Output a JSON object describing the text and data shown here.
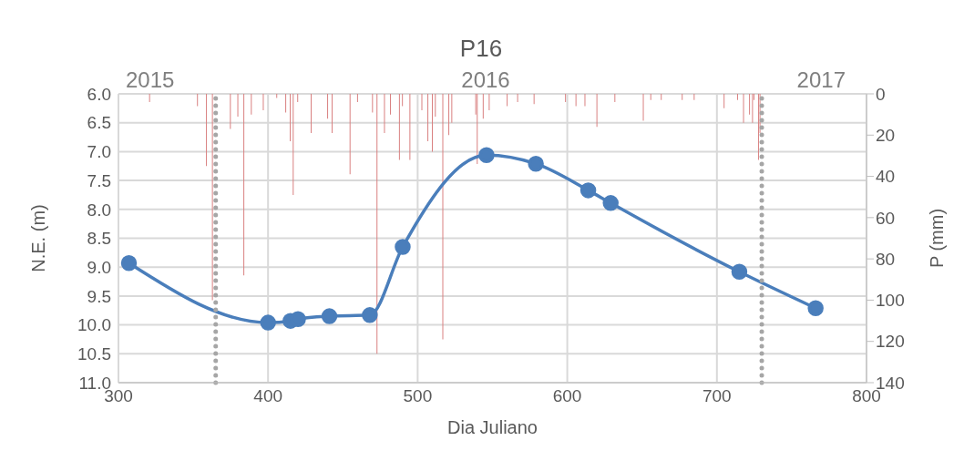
{
  "chart_data": {
    "type": "line",
    "title": "P16",
    "xlabel": "Dia Juliano",
    "ylabel": "N.E. (m)",
    "y2label": "P (mm)",
    "xlim": [
      300,
      800
    ],
    "xticks": [
      300,
      400,
      500,
      600,
      700,
      800
    ],
    "ylim": [
      11,
      6
    ],
    "yticks": [
      {
        "value": 6,
        "label": "6.0"
      },
      {
        "value": 6.5,
        "label": "6.5"
      },
      {
        "value": 7,
        "label": "7.0"
      },
      {
        "value": 7.5,
        "label": "7.5"
      },
      {
        "value": 8,
        "label": "8.0"
      },
      {
        "value": 8.5,
        "label": "8.5"
      },
      {
        "value": 9,
        "label": "9.0"
      },
      {
        "value": 9.5,
        "label": "9.5"
      },
      {
        "value": 10,
        "label": "10.0"
      },
      {
        "value": 10.5,
        "label": "10.5"
      },
      {
        "value": 11,
        "label": "11.0"
      }
    ],
    "y2lim": [
      140,
      0
    ],
    "y2ticks": [
      0,
      20,
      40,
      60,
      80,
      100,
      120,
      140
    ],
    "annotations": [
      "2015",
      "2016",
      "2017"
    ],
    "grid": true,
    "legend": false,
    "ref_lines": [
      {
        "axis": "x",
        "value": 365,
        "color": "#a6a6a6",
        "line_style": "dotted"
      },
      {
        "axis": "x",
        "value": 730,
        "color": "#a6a6a6",
        "line_style": "dotted"
      }
    ],
    "series": [
      {
        "color": "#4a7ebb",
        "marker": "circle",
        "x": [
          307,
          400,
          415,
          420,
          441,
          468,
          490,
          546,
          579,
          614,
          629,
          715,
          766
        ],
        "values": [
          8.93,
          9.96,
          9.93,
          9.9,
          9.85,
          9.83,
          8.65,
          7.06,
          7.21,
          7.67,
          7.89,
          9.08,
          9.71
        ]
      },
      {
        "type": "bar",
        "axis": "y2",
        "color": "#d98080",
        "x": [
          321,
          353,
          359,
          363,
          375,
          380,
          384,
          389,
          397,
          406,
          412,
          415,
          417,
          420,
          429,
          440,
          443,
          455,
          460,
          470,
          473,
          478,
          482,
          488,
          490,
          495,
          503,
          507,
          510,
          512,
          517,
          521,
          523,
          539,
          540,
          544,
          548,
          560,
          567,
          578,
          599,
          606,
          612,
          620,
          632,
          651,
          656,
          663,
          677,
          685,
          705,
          714,
          718,
          722,
          724,
          725,
          728,
          729
        ],
        "values": [
          4,
          6,
          35,
          100,
          17,
          11,
          88,
          10,
          8,
          2,
          9,
          23,
          49,
          4,
          19,
          12,
          19,
          39,
          4,
          9,
          126,
          19,
          10,
          32,
          6,
          32,
          8,
          23,
          28,
          11,
          119,
          20,
          14,
          10,
          34,
          12,
          8,
          6,
          4,
          5,
          4,
          6,
          6,
          16,
          4,
          13,
          3,
          3,
          3,
          3,
          7,
          3,
          14,
          10,
          14,
          3,
          32,
          19
        ]
      }
    ]
  }
}
